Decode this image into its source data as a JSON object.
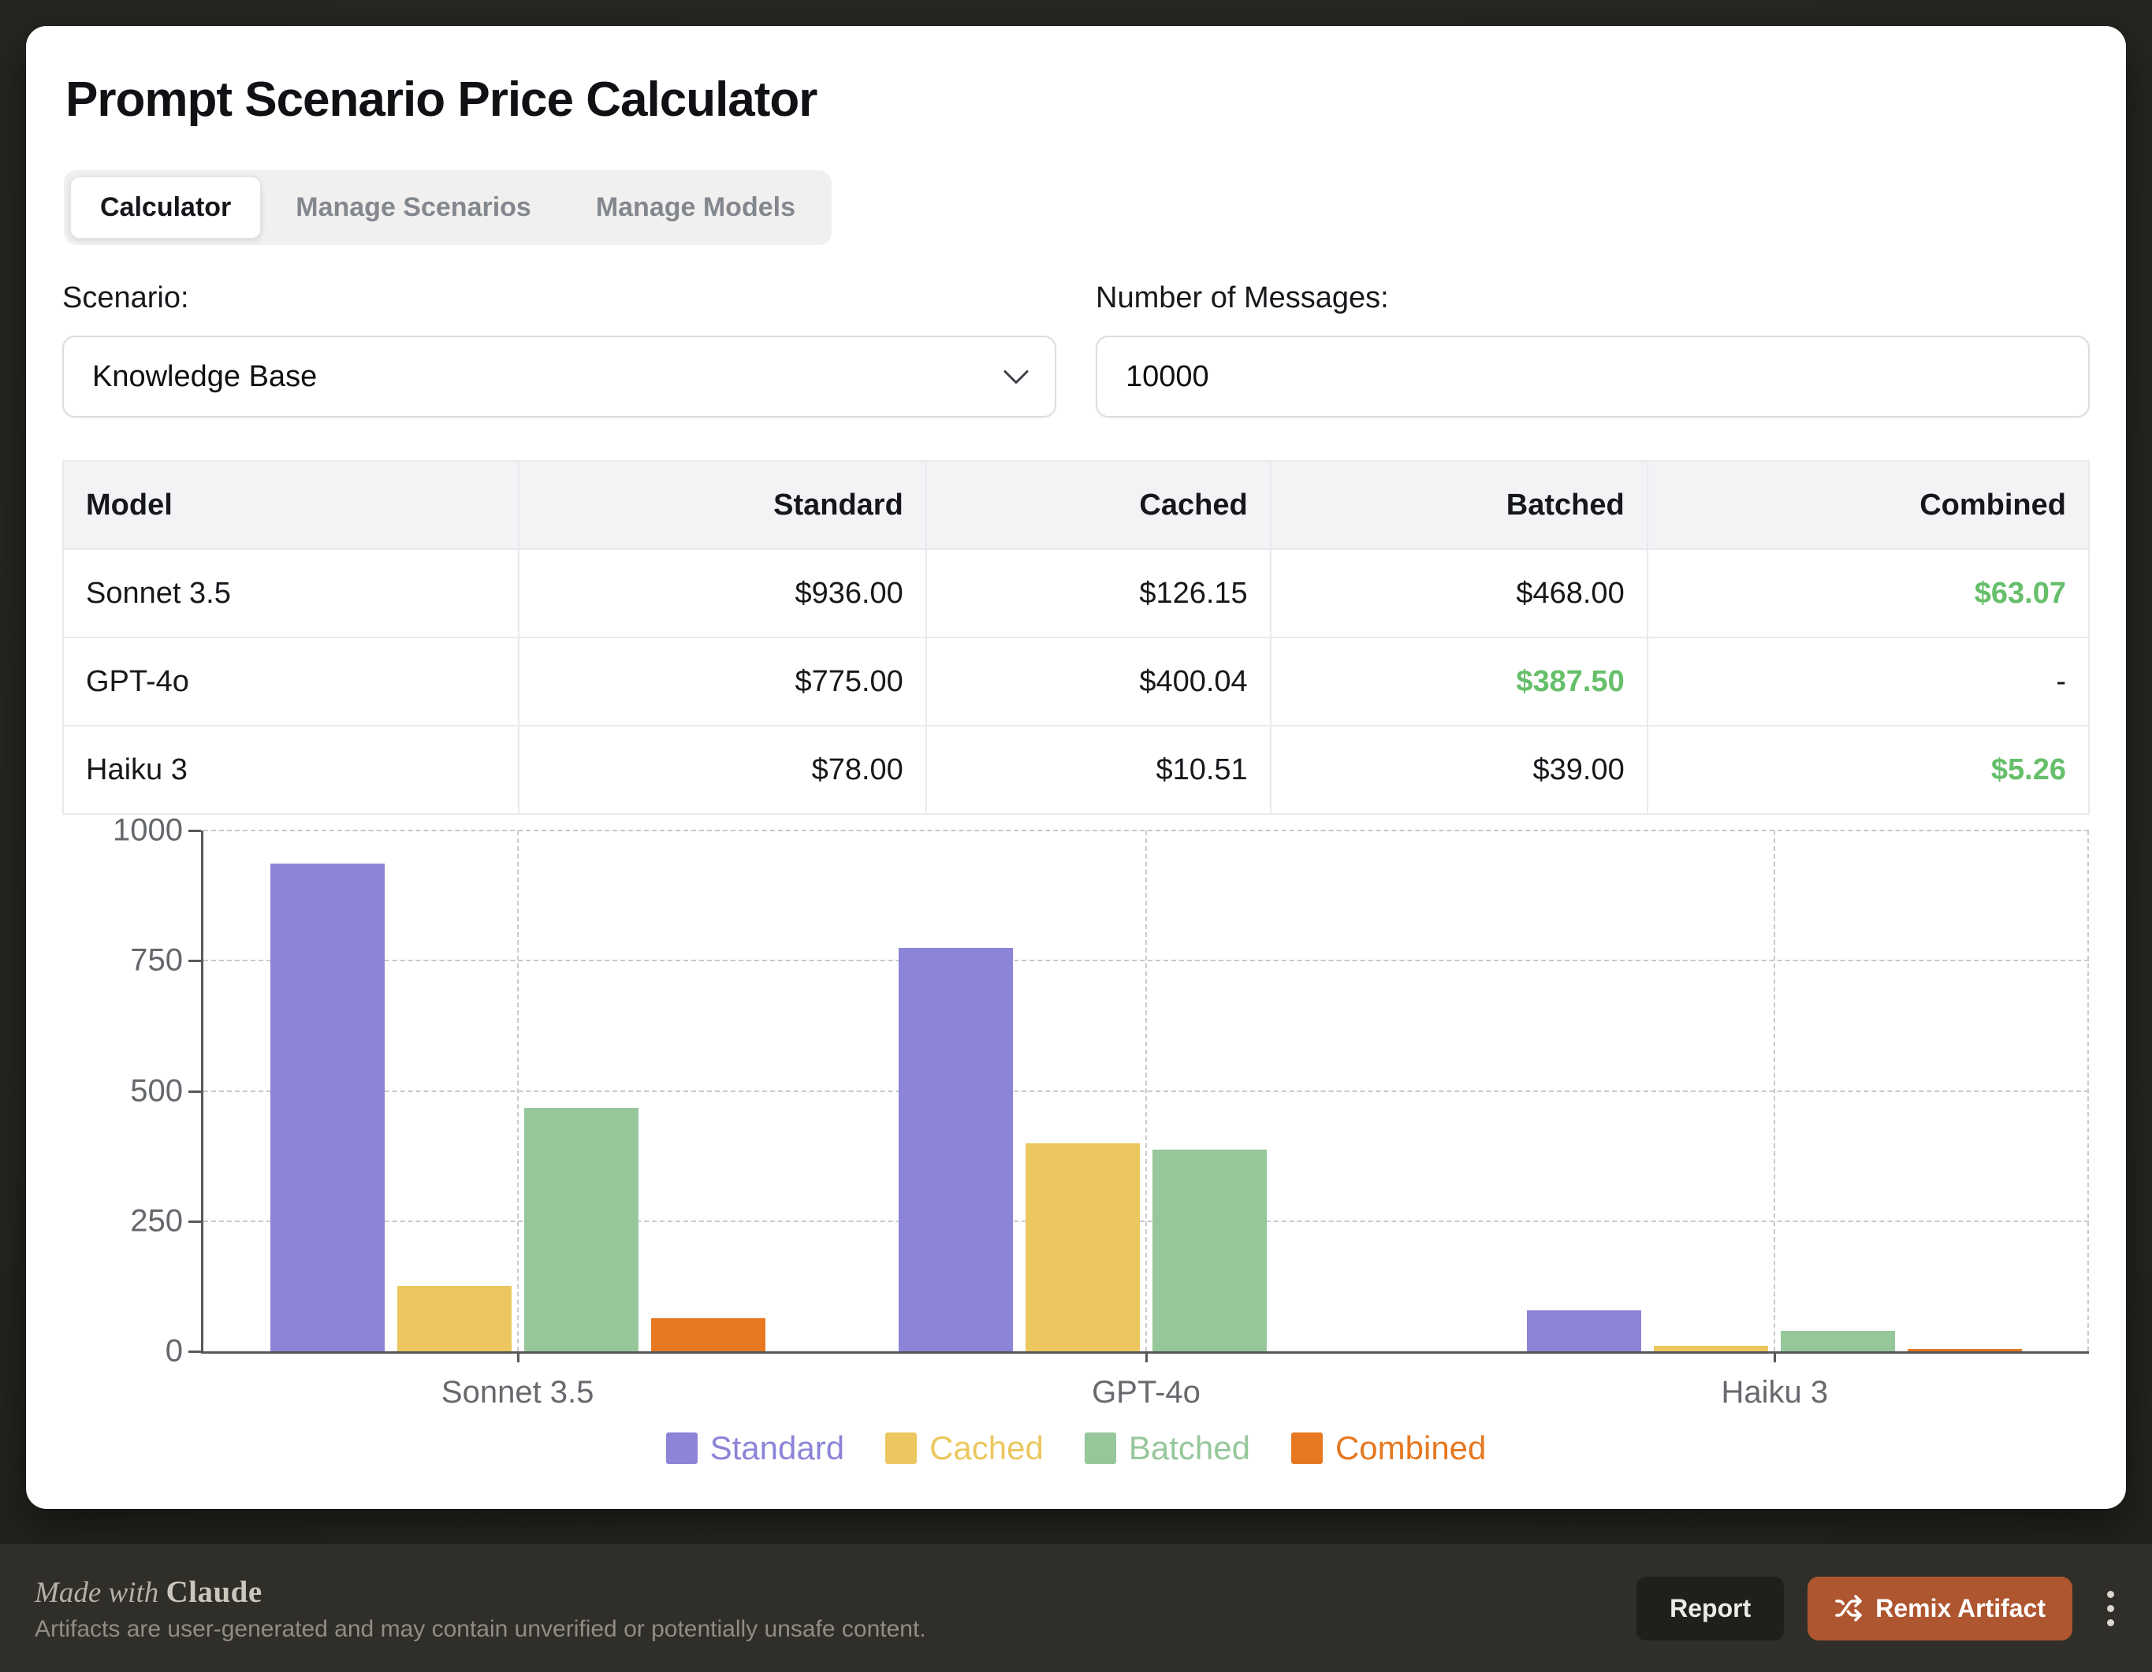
{
  "header": {
    "title": "Prompt Scenario Price Calculator"
  },
  "tabs": [
    {
      "label": "Calculator",
      "active": true
    },
    {
      "label": "Manage Scenarios",
      "active": false
    },
    {
      "label": "Manage Models",
      "active": false
    }
  ],
  "controls": {
    "scenario_label": "Scenario:",
    "scenario_value": "Knowledge Base",
    "messages_label": "Number of Messages:",
    "messages_value": "10000"
  },
  "table": {
    "columns": [
      "Model",
      "Standard",
      "Cached",
      "Batched",
      "Combined"
    ],
    "highlight_color": "#66bf6a",
    "rows": [
      {
        "cells": [
          {
            "text": "Sonnet 3.5"
          },
          {
            "text": "$936.00"
          },
          {
            "text": "$126.15"
          },
          {
            "text": "$468.00"
          },
          {
            "text": "$63.07",
            "highlight": true
          }
        ]
      },
      {
        "cells": [
          {
            "text": "GPT-4o"
          },
          {
            "text": "$775.00"
          },
          {
            "text": "$400.04"
          },
          {
            "text": "$387.50",
            "highlight": true
          },
          {
            "text": "-"
          }
        ]
      },
      {
        "cells": [
          {
            "text": "Haiku 3"
          },
          {
            "text": "$78.00"
          },
          {
            "text": "$10.51"
          },
          {
            "text": "$39.00"
          },
          {
            "text": "$5.26",
            "highlight": true
          }
        ]
      }
    ]
  },
  "chart_data": {
    "type": "bar",
    "title": "",
    "categories": [
      "Sonnet 3.5",
      "GPT-4o",
      "Haiku 3"
    ],
    "series": [
      {
        "name": "Standard",
        "color": "#8b84d7",
        "values": [
          936,
          775,
          78
        ]
      },
      {
        "name": "Cached",
        "color": "#ecc75f",
        "values": [
          126.15,
          400.04,
          10.51
        ]
      },
      {
        "name": "Batched",
        "color": "#96c79b",
        "values": [
          468,
          387.5,
          39
        ]
      },
      {
        "name": "Combined",
        "color": "#e57820",
        "values": [
          63.07,
          null,
          5.26
        ]
      }
    ],
    "xlabel": "",
    "ylabel": "",
    "ylim": [
      0,
      1000
    ],
    "yticks": [
      0,
      250,
      500,
      750,
      1000
    ],
    "grid": "dashed",
    "legend_position": "bottom"
  },
  "footer": {
    "made_with_prefix": "Made with",
    "brand": "Claude",
    "disclaimer": "Artifacts are user-generated and may contain unverified or potentially unsafe content.",
    "report_label": "Report",
    "remix_label": "Remix Artifact"
  },
  "icons": {
    "select_chevron": "chevron-down",
    "remix_button": "shuffle",
    "overflow_menu": "kebab-vertical"
  }
}
